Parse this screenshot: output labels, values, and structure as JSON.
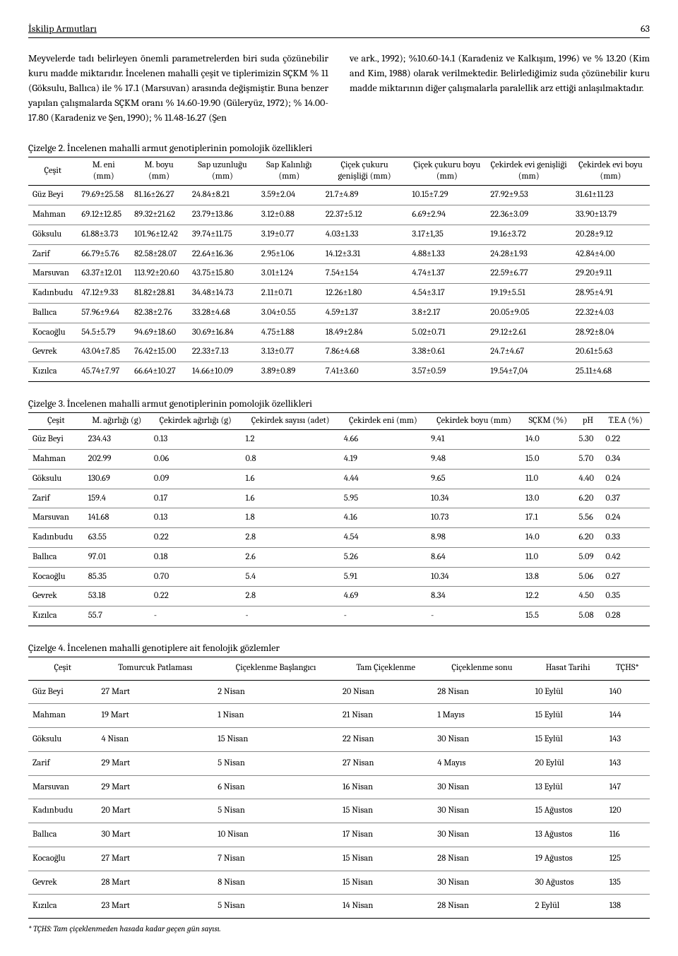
{
  "header": {
    "title": "İskilip Armutları",
    "page_number": "63"
  },
  "paragraph_left": "Meyvelerde tadı belirleyen önemli parametrelerden biri suda çözünebilir kuru madde miktarıdır. İncelenen mahalli çeşit ve tiplerimizin SÇKM % 11 (Göksulu, Ballıca) ile % 17.1 (Marsuvan) arasında değişmiştir. Buna benzer yapılan çalışmalarda SÇKM oranı % 14.60-19.90 (Güleryüz, 1972); % 14.00-17.80 (Karadeniz ve Şen, 1990); % 11.48-16.27 (Şen",
  "paragraph_right": "ve ark., 1992); %10.60-14.1 (Karadeniz ve Kalkışım, 1996) ve % 13.20 (Kim and Kim, 1988) olarak verilmektedir. Belirlediğimiz suda çözünebilir kuru madde miktarının diğer çalışmalarla paralellik arz ettiği anlaşılmaktadır.",
  "table2": {
    "caption": "Çizelge 2.  İncelenen mahalli armut genotiplerinin pomolojik özellikleri",
    "columns": [
      "Çeşit",
      "M. eni (mm)",
      "M. boyu (mm)",
      "Sap uzunluğu (mm)",
      "Sap Kalınlığı (mm)",
      "Çiçek çukuru genişliği (mm)",
      "Çiçek çukuru boyu (mm)",
      "Çekirdek evi genişliği (mm)",
      "Çekirdek evi boyu (mm)"
    ],
    "rows": [
      [
        "Güz Beyi",
        "79.69±25.58",
        "81.16±26.27",
        "24.84±8.21",
        "3.59±2.04",
        "21.7±4.89",
        "10.15±7.29",
        "27.92±9.53",
        "31.61±11.23"
      ],
      [
        "Mahman",
        "69.12±12.85",
        "89.32±21.62",
        "23.79±13.86",
        "3.12±0.88",
        "22.37±5.12",
        "6.69±2.94",
        "22.36±3.09",
        "33.90±13.79"
      ],
      [
        "Göksulu",
        "61.88±3.73",
        "101.96±12.42",
        "39.74±11.75",
        "3.19±0.77",
        "4.03±1.33",
        "3.17±1,35",
        "19.16±3.72",
        "20.28±9.12"
      ],
      [
        "Zarif",
        "66.79±5.76",
        "82.58±28.07",
        "22.64±16.36",
        "2.95±1.06",
        "14.12±3.31",
        "4.88±1.33",
        "24.28±1.93",
        "42.84±4.00"
      ],
      [
        "Marsuvan",
        "63.37±12.01",
        "113.92±20.60",
        "43.75±15.80",
        "3.01±1.24",
        "7.54±1.54",
        "4.74±1.37",
        "22.59±6.77",
        "29.20±9.11"
      ],
      [
        "Kadınbudu",
        "47.12±9.33",
        "81.82±28.81",
        "34.48±14.73",
        "2.11±0.71",
        "12.26±1.80",
        "4.54±3.17",
        "19.19±5.51",
        "28.95±4.91"
      ],
      [
        "Ballıca",
        "57.96±9.64",
        "82.38±2.76",
        "33.28±4.68",
        "3.04±0.55",
        "4.59±1.37",
        "3.8±2.17",
        "20.05±9.05",
        "22.32±4.03"
      ],
      [
        "Kocaoğlu",
        "54.5±5.79",
        "94.69±18.60",
        "30.69±16.84",
        "4.75±1.88",
        "18.49±2.84",
        "5.02±0.71",
        "29.12±2.61",
        "28.92±8.04"
      ],
      [
        "Gevrek",
        "43.04±7.85",
        "76.42±15.00",
        "22.33±7.13",
        "3.13±0.77",
        "7.86±4.68",
        "3.38±0.61",
        "24.7±4.67",
        "20.61±5.63"
      ],
      [
        "Kızılca",
        "45.74±7.97",
        "66.64±10.27",
        "14.66±10.09",
        "3.89±0.89",
        "7.41±3.60",
        "3.57±0.59",
        "19.54±7,04",
        "25.11±4.68"
      ]
    ]
  },
  "table3": {
    "caption": "Çizelge 3. İncelenen mahalli armut genotiplerinin pomolojik özellikleri",
    "columns": [
      "Çeşit",
      "M. ağırlığı (g)",
      "Çekirdek ağırlığı (g)",
      "Çekirdek sayısı (adet)",
      "Çekirdek eni (mm)",
      "Çekirdek boyu (mm)",
      "SÇKM (%)",
      "pH",
      "T.E.A (%)"
    ],
    "rows": [
      [
        "Güz Beyi",
        "234.43",
        "0.13",
        "1.2",
        "4.66",
        "9.41",
        "14.0",
        "5.30",
        "0.22"
      ],
      [
        "Mahman",
        "202.99",
        "0.06",
        "0.8",
        "4.19",
        "9.48",
        "15.0",
        "5.70",
        "0.34"
      ],
      [
        "Göksulu",
        "130.69",
        "0.09",
        "1.6",
        "4.44",
        "9.65",
        "11.0",
        "4.40",
        "0.24"
      ],
      [
        "Zarif",
        "159.4",
        "0.17",
        "1.6",
        "5.95",
        "10.34",
        "13.0",
        "6.20",
        "0.37"
      ],
      [
        "Marsuvan",
        "141.68",
        "0.13",
        "1.8",
        "4.16",
        "10.73",
        "17.1",
        "5.56",
        "0.24"
      ],
      [
        "Kadınbudu",
        "63.55",
        "0.22",
        "2.8",
        "4.54",
        "8.98",
        "14.0",
        "6.20",
        "0.33"
      ],
      [
        "Ballıca",
        "97.01",
        "0.18",
        "2.6",
        "5.26",
        "8.64",
        "11.0",
        "5.09",
        "0.42"
      ],
      [
        "Kocaoğlu",
        "85.35",
        "0.70",
        "5.4",
        "5.91",
        "10.34",
        "13.8",
        "5.06",
        "0.27"
      ],
      [
        "Gevrek",
        "53.18",
        "0.22",
        "2.8",
        "4.69",
        "8.34",
        "12.2",
        "4.50",
        "0.35"
      ],
      [
        "Kızılca",
        "55.7",
        "-",
        "-",
        "-",
        "-",
        "15.5",
        "5.08",
        "0.28"
      ]
    ]
  },
  "table4": {
    "caption": "Çizelge 4. İncelenen mahalli genotiplere ait fenolojik gözlemler",
    "columns": [
      "Çeşit",
      "Tomurcuk Patlaması",
      "Çiçeklenme Başlangıcı",
      "Tam Çiçeklenme",
      "Çiçeklenme sonu",
      "Hasat Tarihi",
      "TÇHS*"
    ],
    "rows": [
      [
        "Güz Beyi",
        "27 Mart",
        "2 Nisan",
        "20 Nisan",
        "28 Nisan",
        "10 Eylül",
        "140"
      ],
      [
        "Mahman",
        "19 Mart",
        "1 Nisan",
        "21 Nisan",
        "1 Mayıs",
        "15 Eylül",
        "144"
      ],
      [
        "Göksulu",
        "4 Nisan",
        "15 Nisan",
        "22 Nisan",
        "30 Nisan",
        "15 Eylül",
        "143"
      ],
      [
        "Zarif",
        "29 Mart",
        "5 Nisan",
        "27 Nisan",
        "4 Mayıs",
        "20 Eylül",
        "143"
      ],
      [
        "Marsuvan",
        "29 Mart",
        "6 Nisan",
        "16 Nisan",
        "30 Nisan",
        "13 Eylül",
        "147"
      ],
      [
        "Kadınbudu",
        "20 Mart",
        "5 Nisan",
        "15 Nisan",
        "30 Nisan",
        "15 Ağustos",
        "120"
      ],
      [
        "Ballıca",
        "30 Mart",
        "10 Nisan",
        "17 Nisan",
        "30 Nisan",
        "13 Ağustos",
        "116"
      ],
      [
        "Kocaoğlu",
        "27 Mart",
        "7 Nisan",
        "15 Nisan",
        "28 Nisan",
        "19 Ağustos",
        "125"
      ],
      [
        "Gevrek",
        "28 Mart",
        "8 Nisan",
        "15 Nisan",
        "30 Nisan",
        "30 Ağustos",
        "135"
      ],
      [
        "Kızılca",
        "23 Mart",
        "5 Nisan",
        "14 Nisan",
        "28 Nisan",
        "2 Eylül",
        "138"
      ]
    ]
  },
  "footnote": "* TÇHS: Tam çiçeklenmeden hasada kadar geçen gün sayısı."
}
